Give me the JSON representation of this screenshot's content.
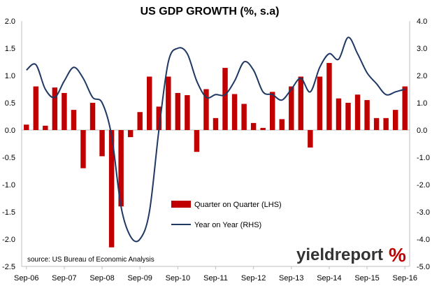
{
  "chart_data": {
    "type": "bar+line",
    "title": "US GDP GROWTH (%, s.a)",
    "left_axis": {
      "min": -2.5,
      "max": 2.0,
      "step": 0.5,
      "ticks": [
        "2.0",
        "1.5",
        "1.0",
        "0.5",
        "0.0",
        "-0.5",
        "-1.0",
        "-1.5",
        "-2.0",
        "-2.5"
      ]
    },
    "right_axis": {
      "min": -5.0,
      "max": 4.0,
      "step": 1.0,
      "ticks": [
        "4.0",
        "3.0",
        "2.0",
        "1.0",
        "0.0",
        "-1.0",
        "-2.0",
        "-3.0",
        "-4.0",
        "-5.0"
      ]
    },
    "x_tick_labels": [
      "Sep-06",
      "Sep-07",
      "Sep-08",
      "Sep-09",
      "Sep-10",
      "Sep-11",
      "Sep-12",
      "Sep-13",
      "Sep-14",
      "Sep-15",
      "Sep-16"
    ],
    "series": [
      {
        "name": "Quarter on Quarter (LHS)",
        "kind": "bar",
        "axis": "left",
        "color": "#c00000",
        "values": [
          0.1,
          0.8,
          0.08,
          0.78,
          0.68,
          0.37,
          -0.7,
          0.5,
          -0.48,
          -2.15,
          -1.4,
          -0.13,
          0.33,
          0.98,
          0.43,
          0.98,
          0.68,
          0.64,
          -0.4,
          0.75,
          0.22,
          1.14,
          0.66,
          0.48,
          0.13,
          0.04,
          0.7,
          0.2,
          0.8,
          0.98,
          -0.32,
          0.98,
          1.23,
          0.58,
          0.5,
          0.65,
          0.55,
          0.22,
          0.22,
          0.37,
          0.8
        ]
      },
      {
        "name": "Year on Year (RHS)",
        "kind": "line",
        "axis": "right",
        "color": "#1f3864",
        "values": [
          2.2,
          2.4,
          1.5,
          1.2,
          1.8,
          2.3,
          1.9,
          1.2,
          1.0,
          -0.2,
          -2.8,
          -3.9,
          -4.0,
          -3.0,
          0.0,
          2.5,
          3.0,
          2.8,
          1.8,
          1.2,
          1.3,
          1.3,
          1.8,
          2.5,
          2.2,
          1.4,
          1.3,
          1.1,
          1.5,
          1.9,
          1.4,
          2.3,
          2.8,
          2.6,
          3.4,
          2.8,
          2.1,
          1.7,
          1.3,
          1.4,
          1.5
        ]
      }
    ],
    "source": "source: US Bureau of Economic Analysis",
    "brand": "yieldreport",
    "brand_mark": "%"
  }
}
